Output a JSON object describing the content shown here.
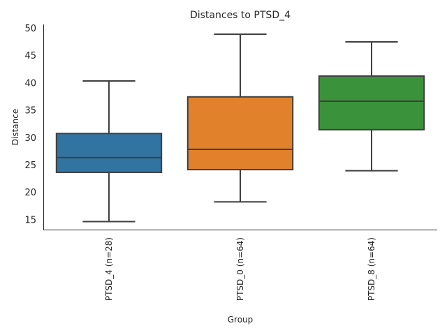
{
  "chart_data": {
    "type": "box",
    "title": "Distances to PTSD_4",
    "xlabel": "Group",
    "ylabel": "Distance",
    "ylim": [
      13,
      50.6
    ],
    "yticks": [
      15,
      20,
      25,
      30,
      35,
      40,
      45,
      50
    ],
    "grid": false,
    "categories": [
      "PTSD_4 (n=28)",
      "PTSD_0 (n=64)",
      "PTSD_8 (n=64)"
    ],
    "series": [
      {
        "name": "PTSD_4 (n=28)",
        "color": "#3274a1",
        "whisker_low": 14.6,
        "q1": 23.6,
        "median": 26.3,
        "q3": 30.7,
        "whisker_high": 40.3
      },
      {
        "name": "PTSD_0 (n=64)",
        "color": "#e1812c",
        "whisker_low": 18.2,
        "q1": 24.1,
        "median": 27.8,
        "q3": 37.4,
        "whisker_high": 48.85
      },
      {
        "name": "PTSD_8 (n=64)",
        "color": "#3a923a",
        "whisker_low": 23.9,
        "q1": 31.4,
        "median": 36.6,
        "q3": 41.2,
        "whisker_high": 47.45
      }
    ]
  }
}
